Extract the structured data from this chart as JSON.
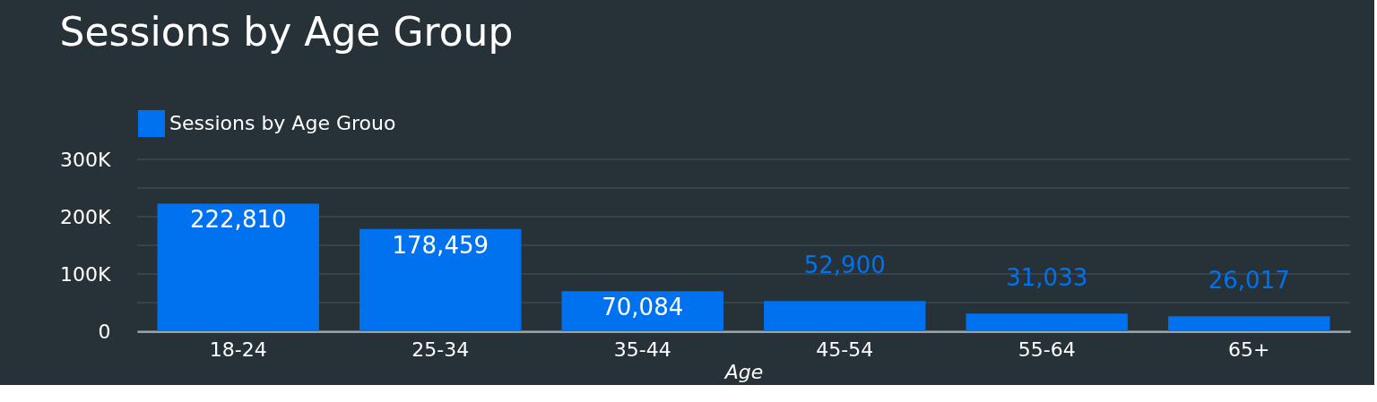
{
  "chart_data": {
    "type": "bar",
    "title": "Sessions by Age Group",
    "xlabel": "Age",
    "categories": [
      "18-24",
      "25-34",
      "35-44",
      "45-54",
      "55-64",
      "65+"
    ],
    "series": [
      {
        "name": "Sessions by Age Grouo",
        "color": "#0072f0",
        "values": [
          222810,
          178459,
          70084,
          52900,
          31033,
          26017
        ],
        "value_labels": [
          "222,810",
          "178,459",
          "70,084",
          "52,900",
          "31,033",
          "26,017"
        ]
      }
    ],
    "ylim": [
      0,
      300000
    ],
    "yticks": [
      0,
      {
        "value": 50000,
        "label": null
      },
      {
        "value": 100000,
        "label": "100K"
      },
      {
        "value": 150000,
        "label": null
      },
      {
        "value": 200000,
        "label": "200K"
      },
      {
        "value": 250000,
        "label": null
      },
      {
        "value": 300000,
        "label": "300K"
      }
    ],
    "grid": "y",
    "legend": "top left",
    "data_labels": true
  }
}
